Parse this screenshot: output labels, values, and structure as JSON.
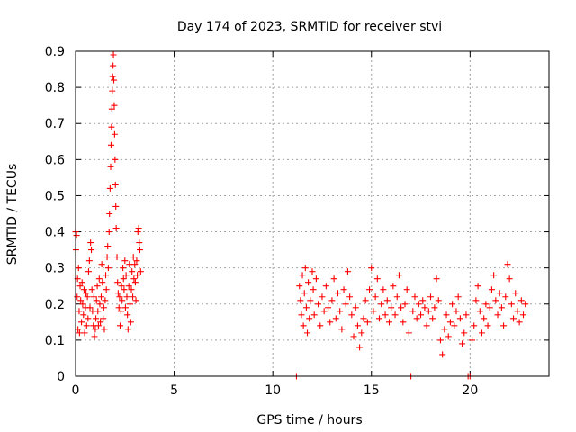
{
  "chart_data": {
    "type": "scatter",
    "title": "Day 174 of 2023, SRMTID for receiver stvi",
    "xlabel": "GPS time / hours",
    "ylabel": "SRMTID / TECUs",
    "xlim": [
      0,
      24
    ],
    "ylim": [
      0,
      0.9
    ],
    "x_ticks": [
      0,
      5,
      10,
      15,
      20
    ],
    "x_tick_labels": [
      "0",
      "5",
      "10",
      "15",
      "20"
    ],
    "y_ticks": [
      0,
      0.1,
      0.2,
      0.3,
      0.4,
      0.5,
      0.6,
      0.7,
      0.8,
      0.9
    ],
    "y_tick_labels": [
      "0",
      "0.1",
      "0.2",
      "0.3",
      "0.4",
      "0.5",
      "0.6",
      "0.7",
      "0.8",
      "0.9"
    ],
    "grid": true,
    "marker": "+",
    "color": "#ff0000",
    "series": [
      {
        "name": "stvi",
        "points": [
          [
            0.0,
            0.4
          ],
          [
            0.02,
            0.35
          ],
          [
            0.05,
            0.39
          ],
          [
            0.08,
            0.22
          ],
          [
            0.1,
            0.27
          ],
          [
            0.12,
            0.13
          ],
          [
            0.15,
            0.3
          ],
          [
            0.18,
            0.18
          ],
          [
            0.2,
            0.12
          ],
          [
            0.23,
            0.25
          ],
          [
            0.26,
            0.21
          ],
          [
            0.3,
            0.15
          ],
          [
            0.33,
            0.26
          ],
          [
            0.36,
            0.2
          ],
          [
            0.4,
            0.17
          ],
          [
            0.43,
            0.24
          ],
          [
            0.46,
            0.12
          ],
          [
            0.5,
            0.19
          ],
          [
            0.53,
            0.23
          ],
          [
            0.56,
            0.14
          ],
          [
            0.6,
            0.22
          ],
          [
            0.63,
            0.16
          ],
          [
            0.66,
            0.29
          ],
          [
            0.7,
            0.32
          ],
          [
            0.73,
            0.19
          ],
          [
            0.76,
            0.37
          ],
          [
            0.8,
            0.35
          ],
          [
            0.83,
            0.24
          ],
          [
            0.86,
            0.18
          ],
          [
            0.9,
            0.14
          ],
          [
            0.93,
            0.22
          ],
          [
            0.96,
            0.11
          ],
          [
            1.0,
            0.13
          ],
          [
            1.03,
            0.16
          ],
          [
            1.06,
            0.21
          ],
          [
            1.1,
            0.25
          ],
          [
            1.13,
            0.18
          ],
          [
            1.16,
            0.14
          ],
          [
            1.2,
            0.27
          ],
          [
            1.23,
            0.2
          ],
          [
            1.26,
            0.15
          ],
          [
            1.3,
            0.22
          ],
          [
            1.33,
            0.31
          ],
          [
            1.36,
            0.26
          ],
          [
            1.4,
            0.16
          ],
          [
            1.43,
            0.19
          ],
          [
            1.46,
            0.13
          ],
          [
            1.5,
            0.21
          ],
          [
            1.53,
            0.28
          ],
          [
            1.56,
            0.24
          ],
          [
            1.6,
            0.33
          ],
          [
            1.63,
            0.36
          ],
          [
            1.66,
            0.3
          ],
          [
            1.7,
            0.4
          ],
          [
            1.72,
            0.45
          ],
          [
            1.75,
            0.52
          ],
          [
            1.78,
            0.58
          ],
          [
            1.8,
            0.64
          ],
          [
            1.82,
            0.69
          ],
          [
            1.84,
            0.74
          ],
          [
            1.86,
            0.79
          ],
          [
            1.88,
            0.83
          ],
          [
            1.9,
            0.86
          ],
          [
            1.92,
            0.89
          ],
          [
            1.94,
            0.82
          ],
          [
            1.96,
            0.75
          ],
          [
            1.98,
            0.67
          ],
          [
            2.0,
            0.6
          ],
          [
            2.02,
            0.53
          ],
          [
            2.04,
            0.47
          ],
          [
            2.06,
            0.41
          ],
          [
            2.1,
            0.33
          ],
          [
            2.13,
            0.26
          ],
          [
            2.16,
            0.23
          ],
          [
            2.2,
            0.19
          ],
          [
            2.23,
            0.22
          ],
          [
            2.26,
            0.14
          ],
          [
            2.3,
            0.18
          ],
          [
            2.33,
            0.25
          ],
          [
            2.36,
            0.21
          ],
          [
            2.4,
            0.3
          ],
          [
            2.43,
            0.27
          ],
          [
            2.46,
            0.24
          ],
          [
            2.5,
            0.32
          ],
          [
            2.53,
            0.19
          ],
          [
            2.56,
            0.28
          ],
          [
            2.6,
            0.22
          ],
          [
            2.63,
            0.17
          ],
          [
            2.66,
            0.13
          ],
          [
            2.7,
            0.25
          ],
          [
            2.73,
            0.31
          ],
          [
            2.76,
            0.2
          ],
          [
            2.8,
            0.15
          ],
          [
            2.83,
            0.24
          ],
          [
            2.86,
            0.29
          ],
          [
            2.9,
            0.22
          ],
          [
            2.93,
            0.33
          ],
          [
            2.96,
            0.27
          ],
          [
            3.0,
            0.31
          ],
          [
            3.03,
            0.26
          ],
          [
            3.06,
            0.21
          ],
          [
            3.1,
            0.32
          ],
          [
            3.13,
            0.28
          ],
          [
            3.16,
            0.4
          ],
          [
            3.2,
            0.41
          ],
          [
            3.23,
            0.37
          ],
          [
            3.26,
            0.35
          ],
          [
            3.3,
            0.29
          ],
          [
            11.2,
            0.0
          ],
          [
            11.35,
            0.25
          ],
          [
            11.4,
            0.21
          ],
          [
            11.45,
            0.17
          ],
          [
            11.5,
            0.28
          ],
          [
            11.55,
            0.14
          ],
          [
            11.6,
            0.23
          ],
          [
            11.65,
            0.3
          ],
          [
            11.7,
            0.19
          ],
          [
            11.75,
            0.12
          ],
          [
            11.8,
            0.26
          ],
          [
            11.85,
            0.16
          ],
          [
            11.9,
            0.21
          ],
          [
            12.0,
            0.29
          ],
          [
            12.05,
            0.24
          ],
          [
            12.1,
            0.17
          ],
          [
            12.2,
            0.27
          ],
          [
            12.3,
            0.2
          ],
          [
            12.4,
            0.14
          ],
          [
            12.5,
            0.22
          ],
          [
            12.6,
            0.18
          ],
          [
            12.7,
            0.25
          ],
          [
            12.8,
            0.19
          ],
          [
            12.9,
            0.15
          ],
          [
            13.0,
            0.21
          ],
          [
            13.1,
            0.27
          ],
          [
            13.2,
            0.16
          ],
          [
            13.3,
            0.23
          ],
          [
            13.4,
            0.18
          ],
          [
            13.5,
            0.13
          ],
          [
            13.6,
            0.24
          ],
          [
            13.7,
            0.2
          ],
          [
            13.8,
            0.29
          ],
          [
            13.9,
            0.22
          ],
          [
            14.0,
            0.17
          ],
          [
            14.1,
            0.11
          ],
          [
            14.2,
            0.19
          ],
          [
            14.3,
            0.14
          ],
          [
            14.4,
            0.08
          ],
          [
            14.5,
            0.12
          ],
          [
            14.6,
            0.16
          ],
          [
            14.7,
            0.21
          ],
          [
            14.8,
            0.15
          ],
          [
            14.9,
            0.24
          ],
          [
            15.0,
            0.3
          ],
          [
            15.1,
            0.18
          ],
          [
            15.2,
            0.22
          ],
          [
            15.3,
            0.27
          ],
          [
            15.4,
            0.16
          ],
          [
            15.5,
            0.2
          ],
          [
            15.6,
            0.24
          ],
          [
            15.7,
            0.17
          ],
          [
            15.8,
            0.21
          ],
          [
            15.9,
            0.15
          ],
          [
            16.0,
            0.19
          ],
          [
            16.1,
            0.25
          ],
          [
            16.2,
            0.17
          ],
          [
            16.3,
            0.22
          ],
          [
            16.4,
            0.28
          ],
          [
            16.5,
            0.19
          ],
          [
            16.6,
            0.15
          ],
          [
            16.7,
            0.2
          ],
          [
            16.8,
            0.24
          ],
          [
            16.9,
            0.12
          ],
          [
            17.0,
            0.0
          ],
          [
            17.1,
            0.18
          ],
          [
            17.2,
            0.22
          ],
          [
            17.3,
            0.16
          ],
          [
            17.4,
            0.2
          ],
          [
            17.5,
            0.17
          ],
          [
            17.6,
            0.21
          ],
          [
            17.7,
            0.19
          ],
          [
            17.8,
            0.14
          ],
          [
            17.9,
            0.18
          ],
          [
            18.0,
            0.22
          ],
          [
            18.1,
            0.16
          ],
          [
            18.2,
            0.19
          ],
          [
            18.3,
            0.27
          ],
          [
            18.4,
            0.21
          ],
          [
            18.5,
            0.1
          ],
          [
            18.6,
            0.06
          ],
          [
            18.7,
            0.13
          ],
          [
            18.8,
            0.17
          ],
          [
            18.9,
            0.11
          ],
          [
            19.0,
            0.15
          ],
          [
            19.1,
            0.2
          ],
          [
            19.2,
            0.14
          ],
          [
            19.3,
            0.18
          ],
          [
            19.4,
            0.22
          ],
          [
            19.5,
            0.16
          ],
          [
            19.6,
            0.09
          ],
          [
            19.7,
            0.12
          ],
          [
            19.8,
            0.17
          ],
          [
            19.9,
            0.0
          ],
          [
            20.0,
            0.0
          ],
          [
            20.1,
            0.1
          ],
          [
            20.2,
            0.14
          ],
          [
            20.3,
            0.21
          ],
          [
            20.4,
            0.25
          ],
          [
            20.5,
            0.18
          ],
          [
            20.6,
            0.12
          ],
          [
            20.7,
            0.16
          ],
          [
            20.8,
            0.2
          ],
          [
            20.9,
            0.14
          ],
          [
            21.0,
            0.19
          ],
          [
            21.1,
            0.24
          ],
          [
            21.2,
            0.28
          ],
          [
            21.3,
            0.21
          ],
          [
            21.4,
            0.17
          ],
          [
            21.5,
            0.23
          ],
          [
            21.6,
            0.19
          ],
          [
            21.7,
            0.14
          ],
          [
            21.8,
            0.22
          ],
          [
            21.9,
            0.31
          ],
          [
            22.0,
            0.27
          ],
          [
            22.1,
            0.2
          ],
          [
            22.2,
            0.16
          ],
          [
            22.3,
            0.23
          ],
          [
            22.4,
            0.18
          ],
          [
            22.5,
            0.15
          ],
          [
            22.6,
            0.21
          ],
          [
            22.7,
            0.17
          ],
          [
            22.8,
            0.2
          ]
        ]
      }
    ]
  }
}
